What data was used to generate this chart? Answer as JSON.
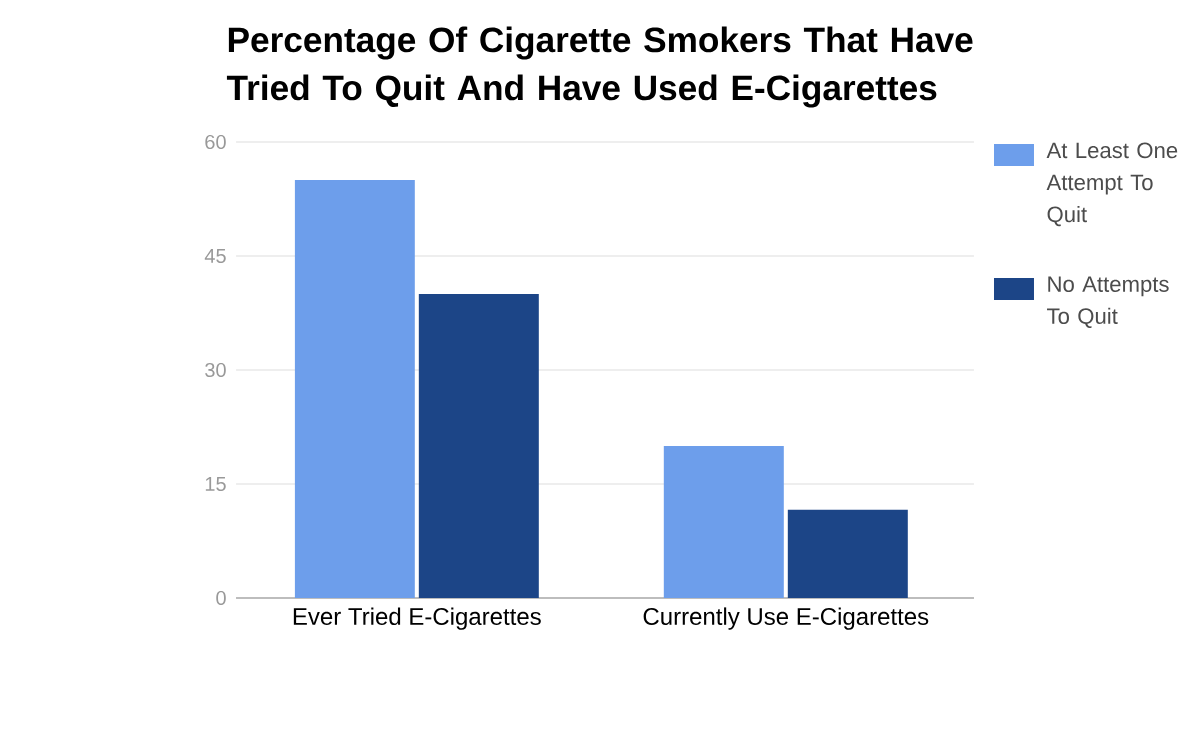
{
  "chart_data": {
    "type": "bar",
    "title": "Percentage Of Cigarette Smokers That Have Tried To Quit And Have Used E-Cigarettes",
    "categories": [
      "Ever Tried E-Cigarettes",
      "Currently Use E-Cigarettes"
    ],
    "series": [
      {
        "name": "At Least One Attempt To Quit",
        "color": "#6d9eeb",
        "values": [
          55,
          20
        ]
      },
      {
        "name": "No Attempts To Quit",
        "color": "#1c4587",
        "values": [
          40,
          11.6
        ]
      }
    ],
    "ylim": [
      0,
      60
    ],
    "yticks": [
      0,
      15,
      30,
      45,
      60
    ],
    "grid": "y",
    "legend": "right"
  }
}
